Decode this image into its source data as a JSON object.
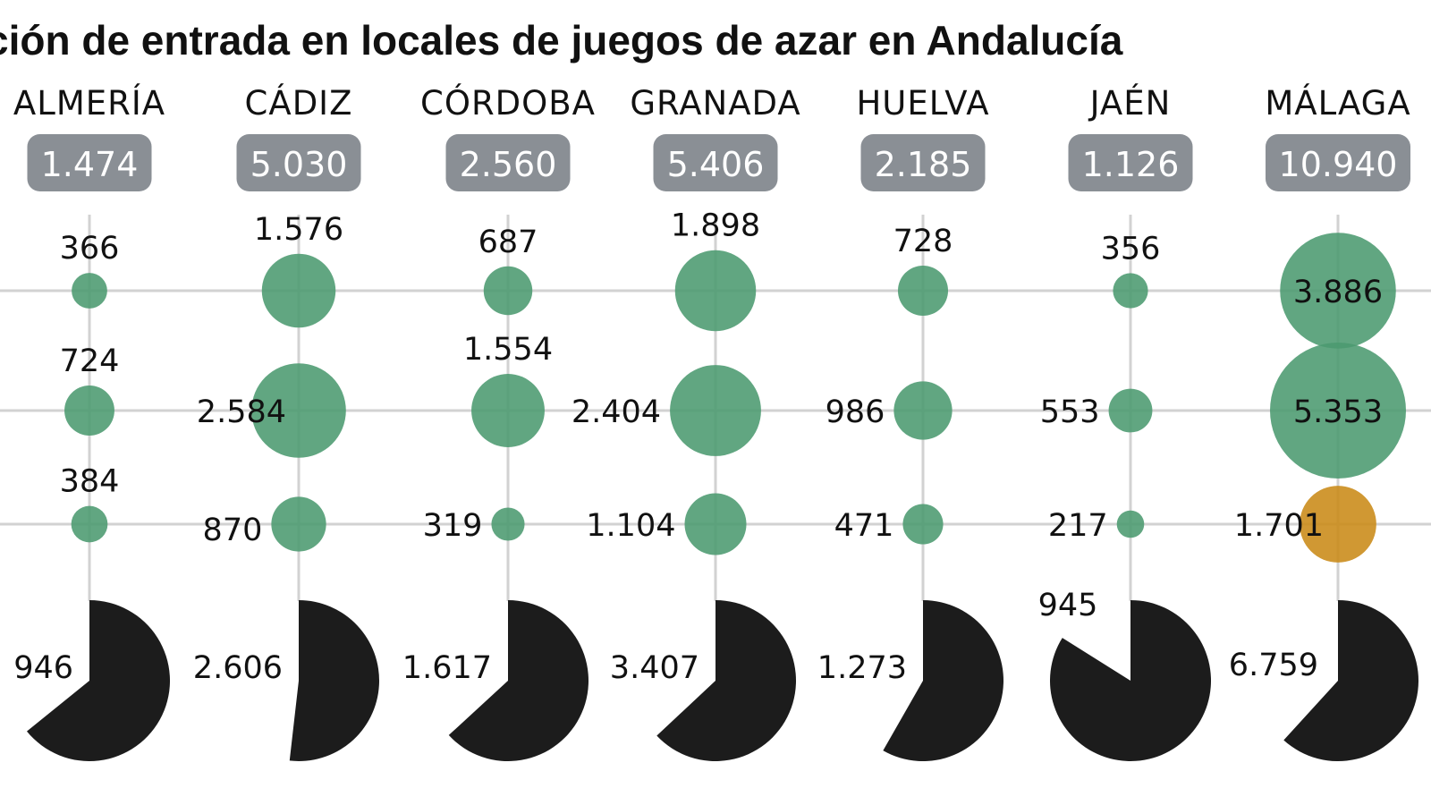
{
  "chart_data": {
    "type": "bubble-grid-with-pie",
    "title": "ción de entrada en locales de juegos de azar en Andalucía",
    "colors": {
      "bubble": "#4b9a70",
      "bubble_highlight": "#c98a17",
      "pie": "#1c1c1c",
      "badge": "#8a8f95",
      "grid": "#d2d2d2"
    },
    "provinces": [
      {
        "name": "ALMERÍA",
        "total": "1.474",
        "rows": [
          {
            "label": "366",
            "value": 366
          },
          {
            "label": "724",
            "value": 724
          },
          {
            "label": "384",
            "value": 384
          }
        ],
        "pie_label": "946",
        "pie_value": 946,
        "highlight_row": -1
      },
      {
        "name": "CÁDIZ",
        "total": "5.030",
        "rows": [
          {
            "label": "1.576",
            "value": 1576
          },
          {
            "label": "2.584",
            "value": 2584
          },
          {
            "label": "870",
            "value": 870
          }
        ],
        "pie_label": "2.606",
        "pie_value": 2606,
        "highlight_row": -1
      },
      {
        "name": "CÓRDOBA",
        "total": "2.560",
        "rows": [
          {
            "label": "687",
            "value": 687
          },
          {
            "label": "1.554",
            "value": 1554
          },
          {
            "label": "319",
            "value": 319
          }
        ],
        "pie_label": "1.617",
        "pie_value": 1617,
        "highlight_row": -1
      },
      {
        "name": "GRANADA",
        "total": "5.406",
        "rows": [
          {
            "label": "1.898",
            "value": 1898
          },
          {
            "label": "2.404",
            "value": 2404
          },
          {
            "label": "1.104",
            "value": 1104
          }
        ],
        "pie_label": "3.407",
        "pie_value": 3407,
        "highlight_row": -1
      },
      {
        "name": "HUELVA",
        "total": "2.185",
        "rows": [
          {
            "label": "728",
            "value": 728
          },
          {
            "label": "986",
            "value": 986
          },
          {
            "label": "471",
            "value": 471
          }
        ],
        "pie_label": "1.273",
        "pie_value": 1273,
        "highlight_row": -1
      },
      {
        "name": "JAÉN",
        "total": "1.126",
        "rows": [
          {
            "label": "356",
            "value": 356
          },
          {
            "label": "553",
            "value": 553
          },
          {
            "label": "217",
            "value": 217
          }
        ],
        "pie_label": "945",
        "pie_value": 945,
        "highlight_row": -1
      },
      {
        "name": "MÁLAGA",
        "total": "10.940",
        "rows": [
          {
            "label": "3.886",
            "value": 3886
          },
          {
            "label": "5.353",
            "value": 5353
          },
          {
            "label": "1.701",
            "value": 1701
          }
        ],
        "pie_label": "6.759",
        "pie_value": 6759,
        "highlight_row": 2
      }
    ]
  }
}
